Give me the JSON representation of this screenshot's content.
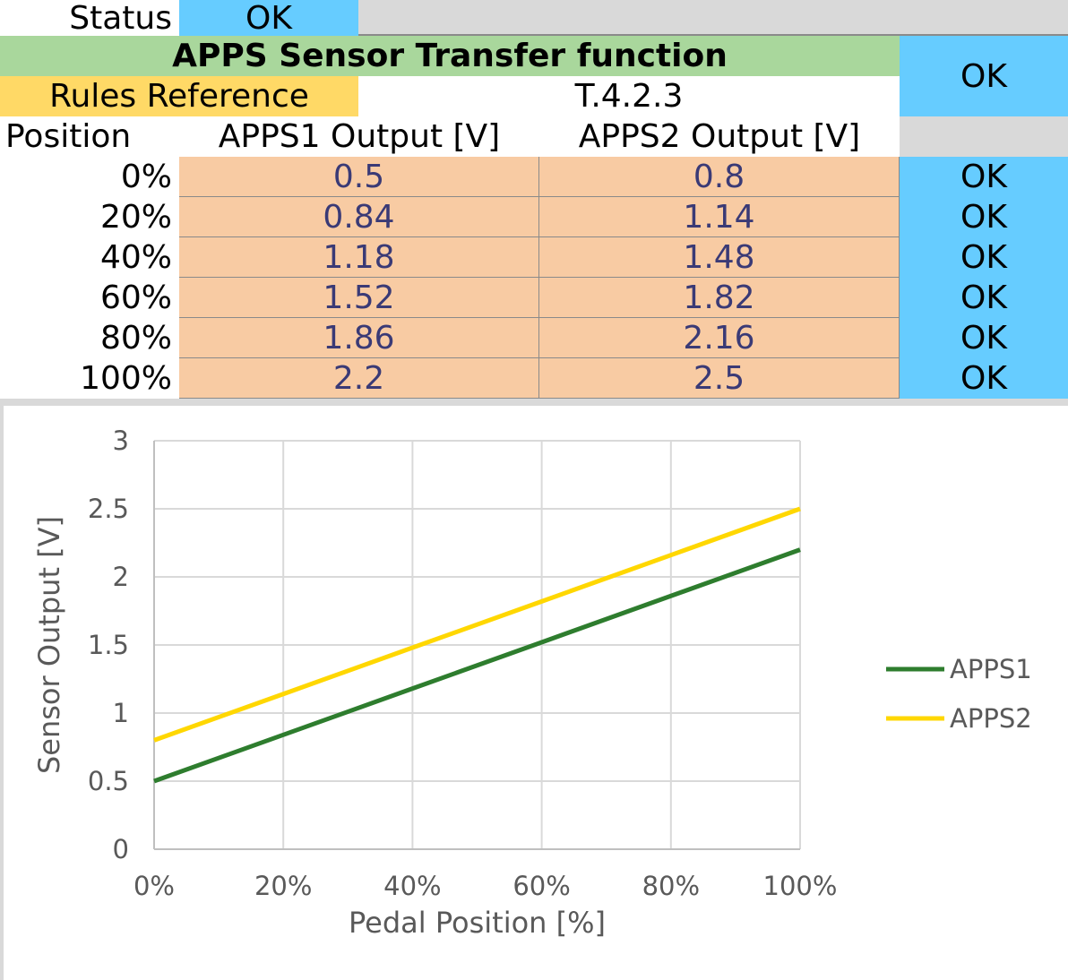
{
  "status": {
    "label": "Status",
    "value": "OK"
  },
  "section": {
    "title": "APPS Sensor Transfer function",
    "check": "OK",
    "rules_label": "Rules Reference",
    "rules_value": "T.4.2.3"
  },
  "table": {
    "headers": [
      "Position",
      "APPS1 Output [V]",
      "APPS2 Output [V]"
    ],
    "rows": [
      {
        "position": "0%",
        "apps1": "0.5",
        "apps2": "0.8",
        "check": "OK"
      },
      {
        "position": "20%",
        "apps1": "0.84",
        "apps2": "1.14",
        "check": "OK"
      },
      {
        "position": "40%",
        "apps1": "1.18",
        "apps2": "1.48",
        "check": "OK"
      },
      {
        "position": "60%",
        "apps1": "1.52",
        "apps2": "1.82",
        "check": "OK"
      },
      {
        "position": "80%",
        "apps1": "1.86",
        "apps2": "2.16",
        "check": "OK"
      },
      {
        "position": "100%",
        "apps1": "2.2",
        "apps2": "2.5",
        "check": "OK"
      }
    ]
  },
  "chart_data": {
    "type": "line",
    "x": [
      0,
      20,
      40,
      60,
      80,
      100
    ],
    "x_tick_labels": [
      "0%",
      "20%",
      "40%",
      "60%",
      "80%",
      "100%"
    ],
    "y_tick_labels": [
      "0",
      "0.5",
      "1",
      "1.5",
      "2",
      "2.5",
      "3"
    ],
    "series": [
      {
        "name": "APPS1",
        "values": [
          0.5,
          0.84,
          1.18,
          1.52,
          1.86,
          2.2
        ],
        "color": "#2e7d2e"
      },
      {
        "name": "APPS2",
        "values": [
          0.8,
          1.14,
          1.48,
          1.82,
          2.16,
          2.5
        ],
        "color": "#ffd700"
      }
    ],
    "xlabel": "Pedal Position [%]",
    "ylabel": "Sensor Output [V]",
    "xlim": [
      0,
      100
    ],
    "ylim": [
      0,
      3
    ],
    "grid": true,
    "legend": "right"
  }
}
